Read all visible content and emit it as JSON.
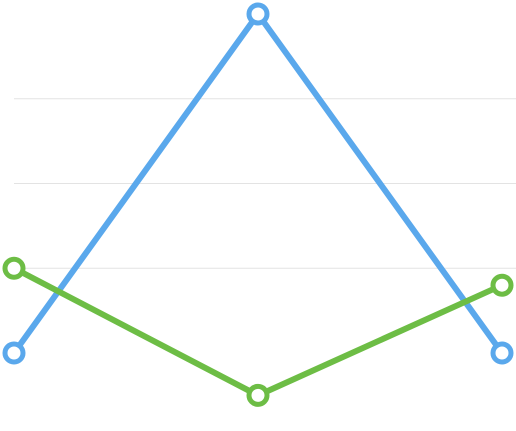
{
  "chart_data": {
    "type": "line",
    "x": [
      0,
      1,
      2
    ],
    "xlim": [
      0,
      2
    ],
    "ylim": [
      0,
      4
    ],
    "grid": true,
    "gridlines": [
      1,
      2,
      3
    ],
    "series": [
      {
        "values": [
          0,
          4,
          0
        ],
        "color": "#5aa8ec"
      },
      {
        "values": [
          1,
          -0.5,
          0.8
        ],
        "color": "#6dbd45"
      }
    ]
  }
}
